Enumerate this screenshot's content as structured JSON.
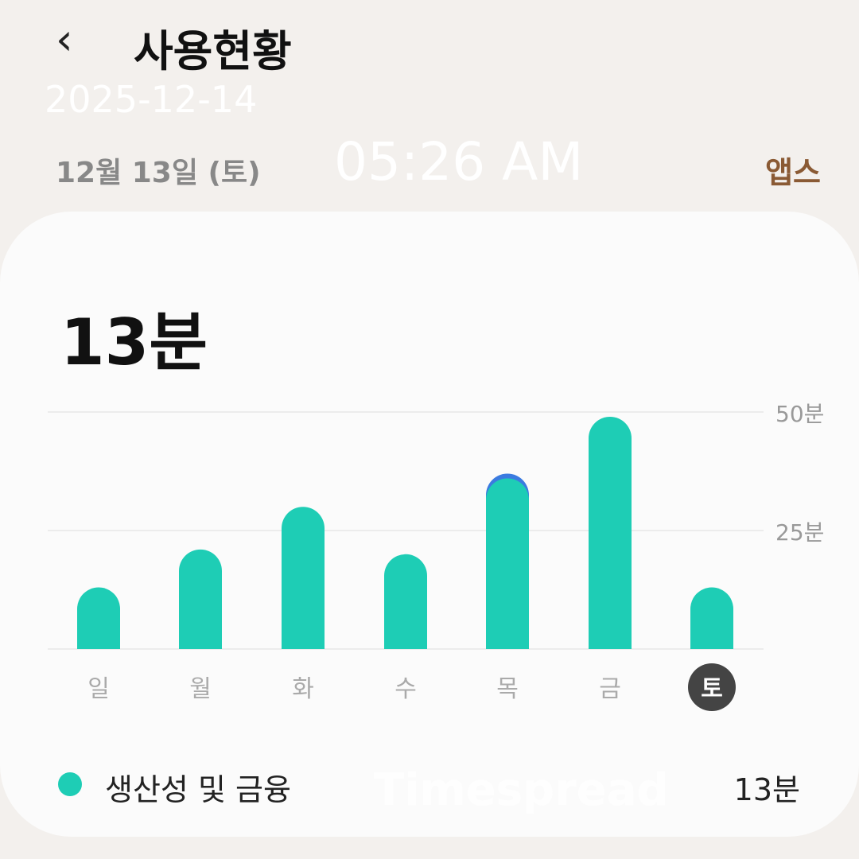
{
  "header": {
    "back_icon": "chevron-left-icon",
    "title": "사용현황",
    "date": "12월 13일 (토)",
    "apps_label": "앱스"
  },
  "overlay": {
    "date": "2025-12-14",
    "time": "05:26 AM",
    "watermark": "Timespread"
  },
  "card": {
    "total": "13분"
  },
  "legend": {
    "label": "생산성 및 금융",
    "value": "13분",
    "color": "#1ecdb5"
  },
  "chart_data": {
    "type": "bar",
    "categories": [
      "일",
      "월",
      "화",
      "수",
      "목",
      "금",
      "토"
    ],
    "series": [
      {
        "name": "생산성 및 금융",
        "color": "#1ecdb5",
        "values": [
          13,
          21,
          30,
          20,
          36,
          49,
          13
        ]
      },
      {
        "color": "#3b7be0",
        "values": [
          0,
          0,
          0,
          0,
          1,
          0,
          0
        ]
      }
    ],
    "y_ticks": [
      "25분",
      "50분"
    ],
    "ylim": [
      0,
      50
    ],
    "selected": "토",
    "grid": true
  }
}
